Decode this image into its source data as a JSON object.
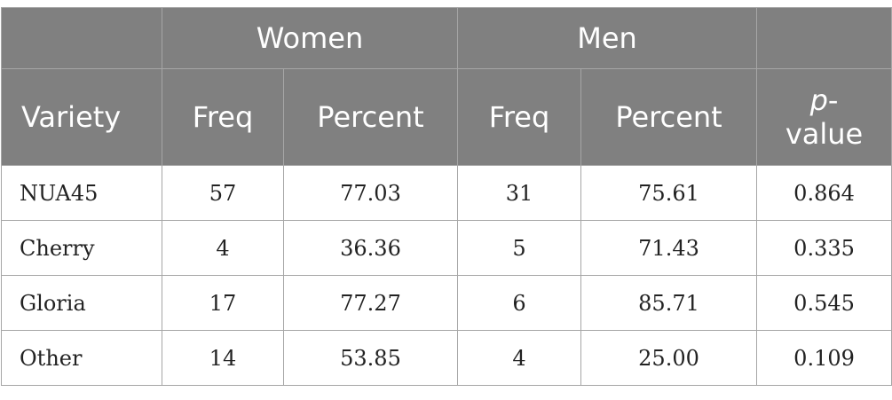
{
  "table": {
    "groups": {
      "women": "Women",
      "men": "Men"
    },
    "headers": {
      "variety": "Variety",
      "women_freq": "Freq",
      "women_percent": "Percent",
      "men_freq": "Freq",
      "men_percent": "Percent",
      "pvalue_p": "p",
      "pvalue_dash": "-",
      "pvalue_rest": "value"
    },
    "rows": [
      {
        "variety": "NUA45",
        "women_freq": "57",
        "women_percent": "77.03",
        "men_freq": "31",
        "men_percent": "75.61",
        "pvalue": "0.864"
      },
      {
        "variety": "Cherry",
        "women_freq": "4",
        "women_percent": "36.36",
        "men_freq": "5",
        "men_percent": "71.43",
        "pvalue": "0.335"
      },
      {
        "variety": "Gloria",
        "women_freq": "17",
        "women_percent": "77.27",
        "men_freq": "6",
        "men_percent": "85.71",
        "pvalue": "0.545"
      },
      {
        "variety": "Other",
        "women_freq": "14",
        "women_percent": "53.85",
        "men_freq": "4",
        "men_percent": "25.00",
        "pvalue": "0.109"
      }
    ]
  }
}
